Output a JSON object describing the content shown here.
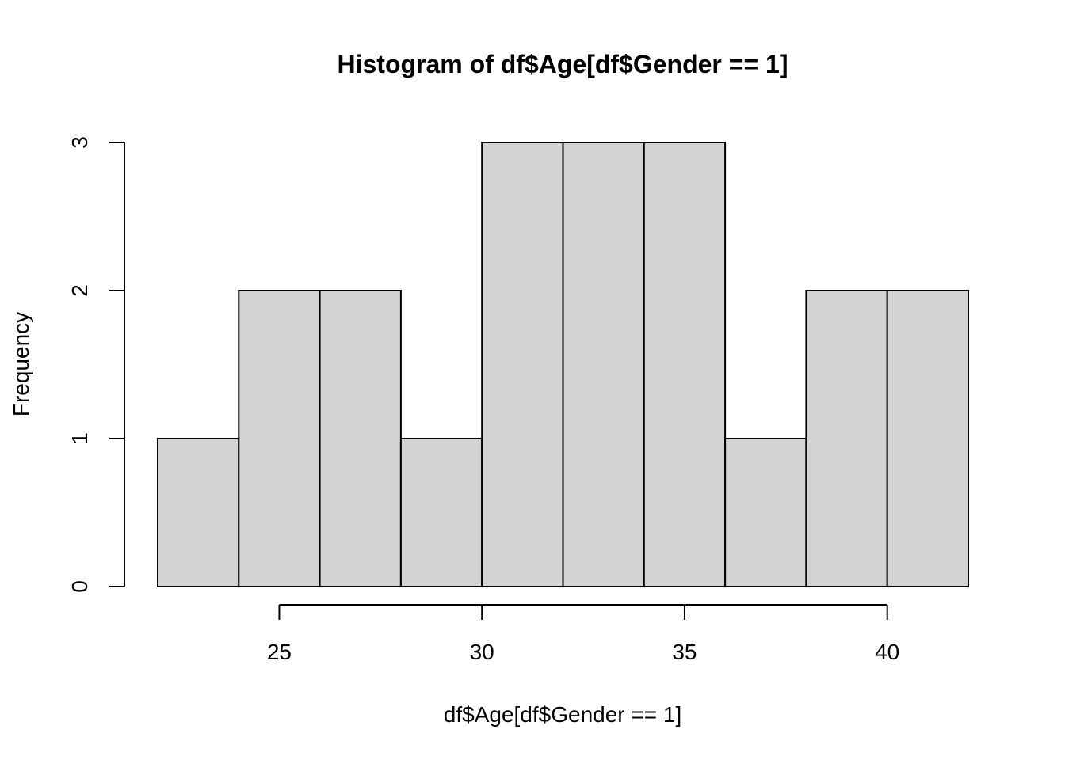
{
  "chart_data": {
    "type": "bar",
    "title": "Histogram of df$Age[df$Gender == 1]",
    "xlabel": "df$Age[df$Gender == 1]",
    "ylabel": "Frequency",
    "bins": [
      {
        "from": 22,
        "to": 24,
        "count": 1
      },
      {
        "from": 24,
        "to": 26,
        "count": 2
      },
      {
        "from": 26,
        "to": 28,
        "count": 2
      },
      {
        "from": 28,
        "to": 30,
        "count": 1
      },
      {
        "from": 30,
        "to": 32,
        "count": 3
      },
      {
        "from": 32,
        "to": 34,
        "count": 3
      },
      {
        "from": 34,
        "to": 36,
        "count": 3
      },
      {
        "from": 36,
        "to": 38,
        "count": 1
      },
      {
        "from": 38,
        "to": 40,
        "count": 2
      },
      {
        "from": 40,
        "to": 42,
        "count": 2
      }
    ],
    "xticks": [
      25,
      30,
      35,
      40
    ],
    "yticks": [
      0,
      1,
      2,
      3
    ],
    "xlim": [
      22,
      42
    ],
    "ylim": [
      0,
      3
    ],
    "bar_color": "#d3d3d3",
    "grid": false,
    "legend": "none"
  }
}
